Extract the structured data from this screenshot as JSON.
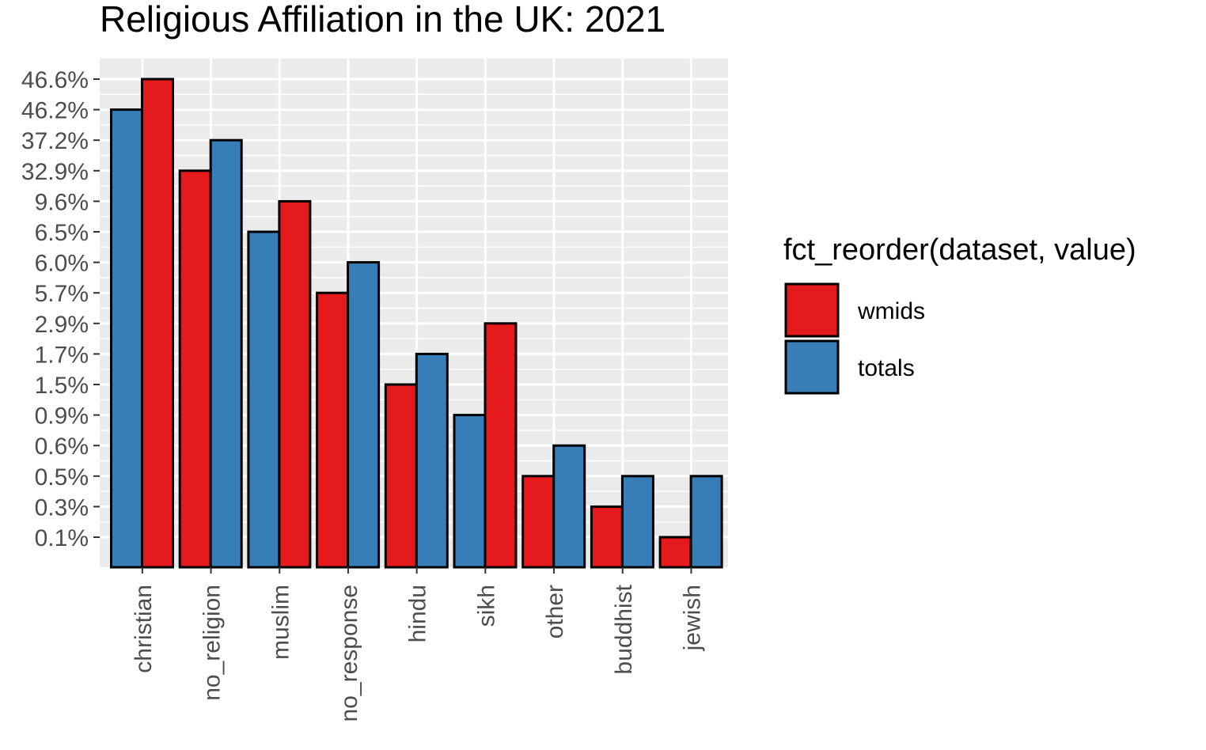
{
  "chart_data": {
    "type": "bar",
    "title": "Religious Affiliation in the UK: 2021",
    "xlabel": "",
    "ylabel": "",
    "categories": [
      "christian",
      "no_religion",
      "muslim",
      "no_response",
      "hindu",
      "sikh",
      "other",
      "buddhist",
      "jewish"
    ],
    "y_scale": "discrete",
    "y_tick_labels": [
      "0.1%",
      "0.3%",
      "0.5%",
      "0.6%",
      "0.9%",
      "1.5%",
      "1.7%",
      "2.9%",
      "5.7%",
      "6.0%",
      "6.5%",
      "9.6%",
      "32.9%",
      "37.2%",
      "46.2%",
      "46.6%"
    ],
    "series": [
      {
        "name": "wmids",
        "color": "#E41A1C",
        "labels": [
          "46.6%",
          "32.9%",
          "9.6%",
          "5.7%",
          "1.5%",
          "2.9%",
          "0.5%",
          "0.3%",
          "0.1%"
        ]
      },
      {
        "name": "totals",
        "color": "#377EB8",
        "labels": [
          "46.2%",
          "37.2%",
          "6.5%",
          "6.0%",
          "1.7%",
          "0.9%",
          "0.6%",
          "0.5%",
          "0.5%"
        ]
      }
    ],
    "bar_order": [
      [
        "totals",
        "wmids"
      ],
      [
        "wmids",
        "totals"
      ],
      [
        "totals",
        "wmids"
      ],
      [
        "wmids",
        "totals"
      ],
      [
        "wmids",
        "totals"
      ],
      [
        "totals",
        "wmids"
      ],
      [
        "wmids",
        "totals"
      ],
      [
        "wmids",
        "totals"
      ],
      [
        "wmids",
        "totals"
      ]
    ],
    "legend": {
      "title": "fct_reorder(dataset, value)",
      "position": "right",
      "entries": [
        "wmids",
        "totals"
      ]
    },
    "grid": true,
    "panel_background": "#EBEBEB"
  }
}
